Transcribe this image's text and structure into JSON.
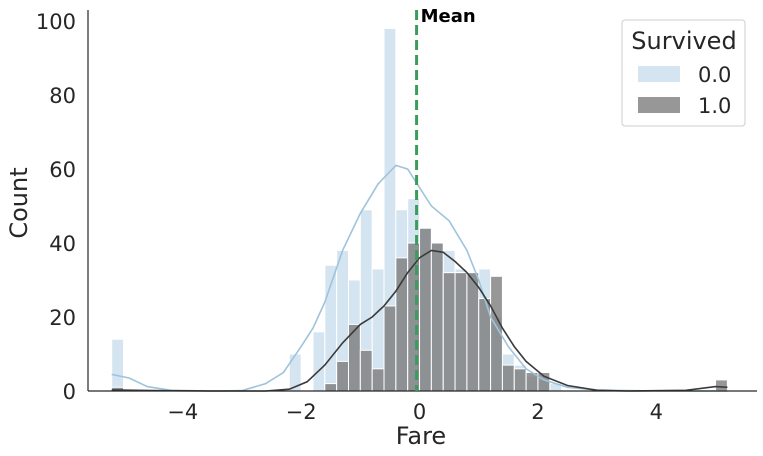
{
  "chart_data": {
    "type": "bar",
    "subtype": "overlaid-histogram-with-kde",
    "xlabel": "Fare",
    "ylabel": "Count",
    "xlim": [
      -5.6,
      5.7
    ],
    "ylim": [
      0,
      103
    ],
    "xticks": [
      -4,
      -2,
      0,
      2,
      4
    ],
    "yticks": [
      0,
      20,
      40,
      60,
      80,
      100
    ],
    "xtick_labels": [
      "−4",
      "−2",
      "0",
      "2",
      "4"
    ],
    "ytick_labels": [
      "0",
      "20",
      "40",
      "60",
      "80",
      "100"
    ],
    "grid": false,
    "bin_width": 0.2,
    "legend": {
      "title": "Survived",
      "placement": "top-right",
      "entries": [
        "0.0",
        "1.0"
      ]
    },
    "annotation": {
      "text": "Mean",
      "x": -0.05,
      "line_color": "#3a9e5a",
      "line_style": "dashed"
    },
    "series": [
      {
        "name": "0.0",
        "color": "#a9cce3",
        "kde_color": "#9ec4dc",
        "bins": [
          {
            "x": -5.2,
            "count": 14
          },
          {
            "x": -2.2,
            "count": 10
          },
          {
            "x": -1.8,
            "count": 16
          },
          {
            "x": -1.6,
            "count": 34
          },
          {
            "x": -1.4,
            "count": 38
          },
          {
            "x": -1.2,
            "count": 30
          },
          {
            "x": -1.0,
            "count": 49
          },
          {
            "x": -0.8,
            "count": 33
          },
          {
            "x": -0.6,
            "count": 98
          },
          {
            "x": -0.4,
            "count": 49
          },
          {
            "x": -0.2,
            "count": 52
          },
          {
            "x": 0.0,
            "count": 44
          },
          {
            "x": 0.2,
            "count": 40
          },
          {
            "x": 0.4,
            "count": 38
          },
          {
            "x": 0.6,
            "count": 33
          },
          {
            "x": 0.8,
            "count": 32
          },
          {
            "x": 1.0,
            "count": 33
          },
          {
            "x": 1.2,
            "count": 20
          },
          {
            "x": 1.4,
            "count": 10
          },
          {
            "x": 1.6,
            "count": 7
          },
          {
            "x": 1.8,
            "count": 4
          },
          {
            "x": 2.0,
            "count": 3
          },
          {
            "x": 2.2,
            "count": 2
          }
        ]
      },
      {
        "name": "1.0",
        "color": "#7a7a7a",
        "kde_color": "#3b3b3b",
        "bins": [
          {
            "x": -5.2,
            "count": 1
          },
          {
            "x": -1.6,
            "count": 2
          },
          {
            "x": -1.4,
            "count": 8
          },
          {
            "x": -1.2,
            "count": 18
          },
          {
            "x": -1.0,
            "count": 11
          },
          {
            "x": -0.8,
            "count": 6
          },
          {
            "x": -0.6,
            "count": 23
          },
          {
            "x": -0.4,
            "count": 36
          },
          {
            "x": -0.2,
            "count": 40
          },
          {
            "x": 0.0,
            "count": 44
          },
          {
            "x": 0.2,
            "count": 40
          },
          {
            "x": 0.4,
            "count": 32
          },
          {
            "x": 0.6,
            "count": 32
          },
          {
            "x": 0.8,
            "count": 32
          },
          {
            "x": 1.0,
            "count": 25
          },
          {
            "x": 1.2,
            "count": 31
          },
          {
            "x": 1.4,
            "count": 7
          },
          {
            "x": 1.6,
            "count": 6
          },
          {
            "x": 1.8,
            "count": 5
          },
          {
            "x": 2.0,
            "count": 5
          },
          {
            "x": 5.0,
            "count": 3
          }
        ]
      }
    ],
    "kde": [
      {
        "series": "0.0",
        "points": [
          [
            -5.2,
            4.5
          ],
          [
            -4.9,
            3.5
          ],
          [
            -4.6,
            1.2
          ],
          [
            -4.2,
            0.2
          ],
          [
            -3.5,
            0.0
          ],
          [
            -3.0,
            0.1
          ],
          [
            -2.6,
            2
          ],
          [
            -2.3,
            5
          ],
          [
            -2.0,
            12
          ],
          [
            -1.8,
            17
          ],
          [
            -1.6,
            24
          ],
          [
            -1.3,
            38
          ],
          [
            -1.0,
            48
          ],
          [
            -0.7,
            56
          ],
          [
            -0.4,
            61
          ],
          [
            -0.2,
            60
          ],
          [
            0.0,
            55
          ],
          [
            0.2,
            50
          ],
          [
            0.5,
            46
          ],
          [
            0.8,
            38
          ],
          [
            1.0,
            30
          ],
          [
            1.2,
            20
          ],
          [
            1.5,
            12
          ],
          [
            1.8,
            6
          ],
          [
            2.1,
            3
          ],
          [
            2.5,
            1
          ],
          [
            3.0,
            0.3
          ],
          [
            3.5,
            0.1
          ],
          [
            4.0,
            0.0
          ],
          [
            5.2,
            0.0
          ]
        ]
      },
      {
        "series": "1.0",
        "points": [
          [
            -5.2,
            0.3
          ],
          [
            -4.5,
            0.1
          ],
          [
            -3.5,
            0.0
          ],
          [
            -2.6,
            0.0
          ],
          [
            -2.2,
            0.5
          ],
          [
            -1.9,
            2.5
          ],
          [
            -1.6,
            7
          ],
          [
            -1.3,
            13
          ],
          [
            -1.0,
            18
          ],
          [
            -0.8,
            20
          ],
          [
            -0.6,
            23
          ],
          [
            -0.4,
            27
          ],
          [
            -0.2,
            32
          ],
          [
            0.0,
            36
          ],
          [
            0.2,
            38
          ],
          [
            0.4,
            37.5
          ],
          [
            0.6,
            35
          ],
          [
            0.8,
            32
          ],
          [
            1.0,
            28
          ],
          [
            1.2,
            23
          ],
          [
            1.4,
            17
          ],
          [
            1.6,
            12
          ],
          [
            1.8,
            8
          ],
          [
            2.1,
            4
          ],
          [
            2.5,
            1.5
          ],
          [
            3.0,
            0.2
          ],
          [
            3.5,
            0.0
          ],
          [
            4.5,
            0.2
          ],
          [
            5.0,
            1.2
          ],
          [
            5.2,
            1.0
          ]
        ]
      }
    ]
  }
}
